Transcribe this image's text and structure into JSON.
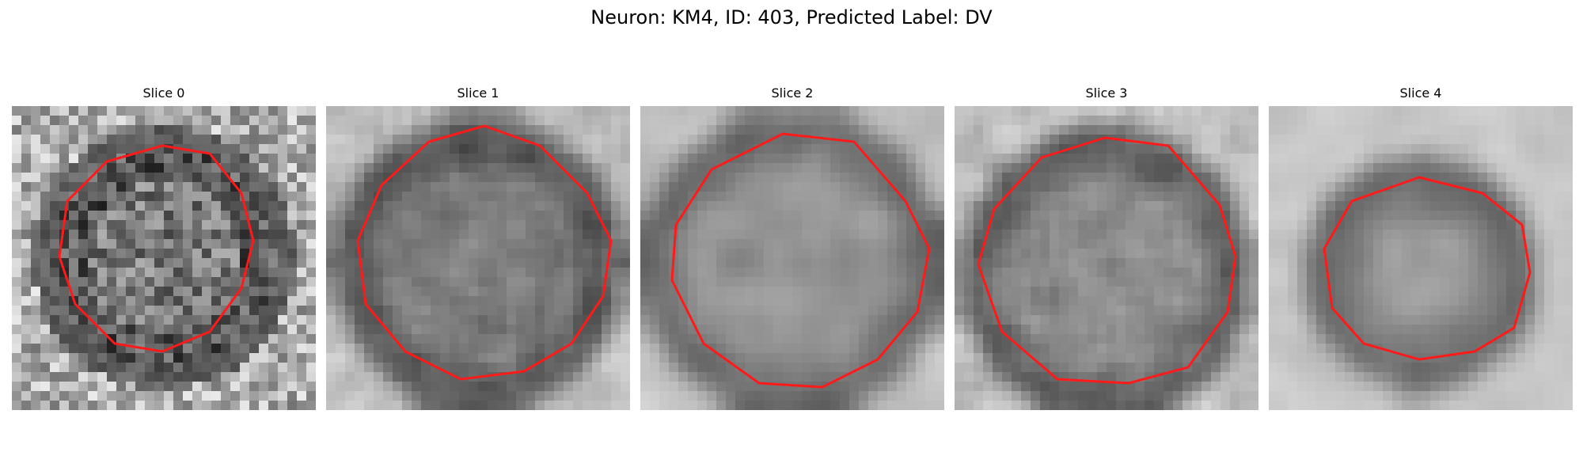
{
  "figure": {
    "title": "Neuron: KM4, ID: 403, Predicted Label: DV",
    "neuron": "KM4",
    "id": "403",
    "predicted_label": "DV"
  },
  "colors": {
    "contour": "#ff1a1a",
    "background": "#ffffff",
    "text": "#000000"
  },
  "panels": [
    {
      "title": "Slice 0"
    },
    {
      "title": "Slice 1"
    },
    {
      "title": "Slice 2"
    },
    {
      "title": "Slice 3"
    },
    {
      "title": "Slice 4"
    }
  ]
}
